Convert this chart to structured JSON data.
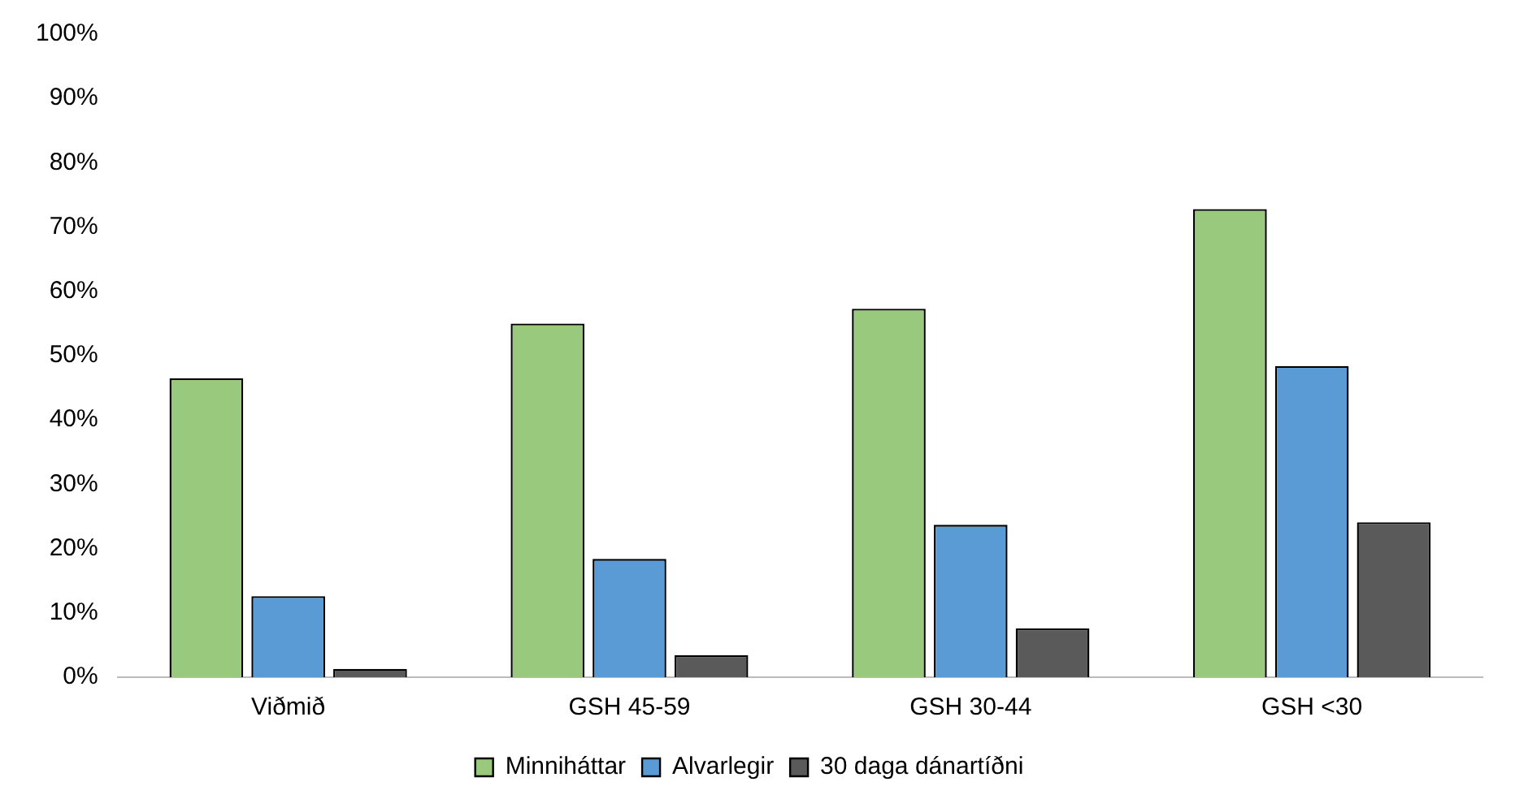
{
  "chart_data": {
    "type": "bar",
    "categories": [
      "Viðmið",
      "GSH 45-59",
      "GSH 30-44",
      "GSH <30"
    ],
    "series": [
      {
        "name": "Minniháttar",
        "color": "#98c97c",
        "values": [
          46.5,
          55,
          57.3,
          72.8
        ]
      },
      {
        "name": "Alvarlegir",
        "color": "#5b9bd5",
        "values": [
          12.6,
          18.4,
          23.7,
          48.4
        ]
      },
      {
        "name": "30 daga dánartíðni",
        "color": "#5a5a5a",
        "values": [
          1.3,
          3.4,
          7.6,
          24.1
        ]
      }
    ],
    "ylim": [
      0,
      100
    ],
    "yticks": [
      {
        "value": 0,
        "label": "0%"
      },
      {
        "value": 10,
        "label": "10%"
      },
      {
        "value": 20,
        "label": "20%"
      },
      {
        "value": 30,
        "label": "30%"
      },
      {
        "value": 40,
        "label": "40%"
      },
      {
        "value": 50,
        "label": "50%"
      },
      {
        "value": 60,
        "label": "60%"
      },
      {
        "value": 70,
        "label": "70%"
      },
      {
        "value": 80,
        "label": "80%"
      },
      {
        "value": 90,
        "label": "90%"
      },
      {
        "value": 100,
        "label": "100%"
      }
    ],
    "grid": false,
    "legend": "bottom"
  }
}
